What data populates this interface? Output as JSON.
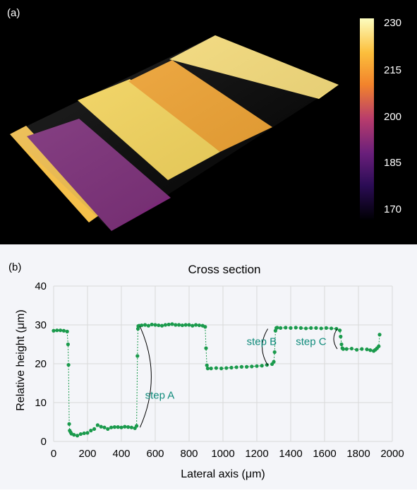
{
  "panel_a": {
    "label": "(a)",
    "colorbar": {
      "ticks": [
        "230",
        "215",
        "200",
        "185",
        "170"
      ],
      "colors": [
        "#fcfdbf",
        "#fcbf3c",
        "#f2832c",
        "#b83c6c",
        "#6a1f7b",
        "#2b0c55",
        "#000004"
      ]
    },
    "surface_colors": {
      "left_strip": "#f5c04a",
      "purple_region": "#7b2a78",
      "bright_region": "#f9d85a",
      "orange_region": "#f4a42e",
      "top_region": "#fbe07a"
    }
  },
  "panel_b": {
    "label": "(b)",
    "annotations": [
      {
        "text": "step A",
        "x": 540,
        "y": 11
      },
      {
        "text": "step B",
        "x": 1140,
        "y": 24.8
      },
      {
        "text": "step C",
        "x": 1430,
        "y": 24.8
      }
    ]
  },
  "chart_data": {
    "type": "scatter",
    "title": "Cross section",
    "xlabel": "Lateral axis (μm)",
    "ylabel": "Relative height (μm)",
    "xlim": [
      0,
      2000
    ],
    "ylim": [
      0,
      40
    ],
    "xticks": [
      "0",
      "200",
      "400",
      "600",
      "800",
      "1000",
      "1200",
      "1400",
      "1600",
      "1800",
      "2000"
    ],
    "yticks": [
      "0",
      "10",
      "20",
      "30",
      "40"
    ],
    "grid": true,
    "marker_color": "#1a9a4c",
    "series": [
      {
        "x": [
          0,
          20,
          40,
          60,
          80,
          85,
          88,
          92,
          95,
          100,
          105,
          120,
          140,
          160,
          180,
          200,
          220,
          240,
          260,
          280,
          300,
          320,
          340,
          360,
          380,
          400,
          420,
          440,
          460,
          480,
          490,
          495,
          498,
          500,
          505,
          520,
          540,
          560,
          580,
          600,
          620,
          640,
          660,
          680,
          700,
          720,
          740,
          760,
          780,
          800,
          820,
          840,
          860,
          880,
          895,
          900,
          905,
          910,
          930,
          960,
          990,
          1020,
          1050,
          1080,
          1110,
          1140,
          1170,
          1200,
          1230,
          1260,
          1290,
          1300,
          1305,
          1310,
          1315,
          1320,
          1340,
          1370,
          1400,
          1430,
          1460,
          1490,
          1520,
          1550,
          1580,
          1610,
          1640,
          1670,
          1690,
          1695,
          1700,
          1705,
          1710,
          1730,
          1760,
          1790,
          1820,
          1850,
          1870,
          1890,
          1900,
          1910,
          1920,
          1925
        ],
        "y": [
          28.5,
          28.6,
          28.6,
          28.5,
          28.3,
          25.0,
          19.7,
          4.5,
          2.8,
          2.4,
          2.0,
          1.7,
          1.5,
          1.9,
          2.1,
          2.2,
          2.8,
          3.2,
          4.2,
          3.8,
          3.6,
          3.2,
          3.6,
          3.7,
          3.7,
          3.6,
          3.8,
          3.7,
          3.6,
          3.4,
          4.0,
          22.0,
          29.0,
          29.7,
          29.8,
          29.9,
          30.0,
          29.8,
          30.1,
          30.0,
          29.9,
          29.8,
          30.0,
          30.1,
          30.2,
          30.0,
          30.0,
          29.9,
          30.0,
          30.0,
          29.8,
          30.0,
          29.9,
          29.8,
          29.5,
          24.0,
          19.6,
          18.8,
          18.8,
          18.9,
          18.8,
          18.9,
          19.0,
          19.1,
          19.2,
          19.2,
          19.3,
          19.4,
          19.5,
          19.7,
          19.9,
          20.5,
          23.0,
          28.5,
          29.2,
          29.3,
          29.2,
          29.3,
          29.2,
          29.3,
          29.2,
          29.1,
          29.2,
          29.2,
          29.1,
          29.2,
          29.1,
          29.0,
          28.6,
          27.0,
          25.0,
          24.0,
          23.8,
          23.8,
          23.9,
          23.6,
          23.8,
          23.7,
          23.5,
          23.3,
          23.6,
          24.0,
          24.5,
          27.5
        ]
      }
    ]
  }
}
